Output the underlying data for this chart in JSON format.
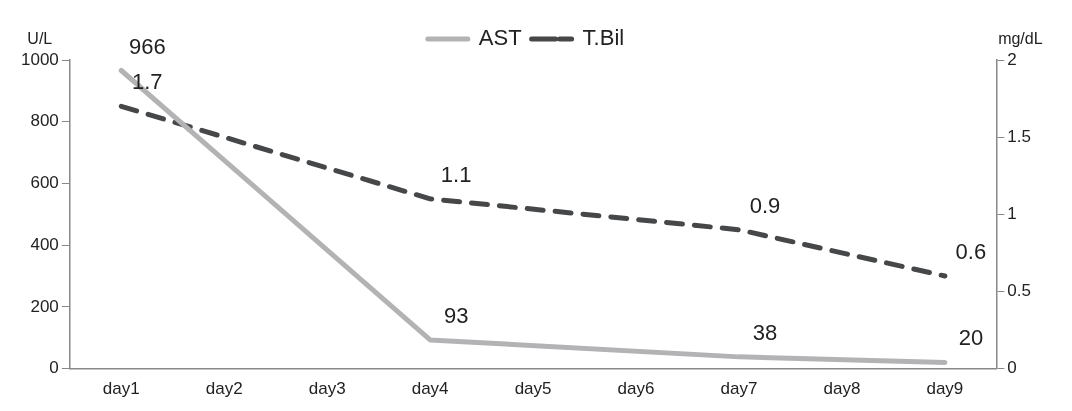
{
  "chart_data": {
    "type": "line",
    "ylabel": "U/L",
    "y2label": "mg/dL",
    "categories": [
      "day1",
      "day2",
      "day3",
      "day4",
      "day5",
      "day6",
      "day7",
      "day8",
      "day9"
    ],
    "series": [
      {
        "name": "AST",
        "color": "#b3b3b6",
        "line_style": "solid",
        "values": [
          966,
          null,
          null,
          93,
          null,
          null,
          38,
          null,
          20
        ]
      },
      {
        "name": "T.Bil",
        "color": "#454749",
        "line_style": "dashed",
        "axis": "y2",
        "values": [
          1.7,
          null,
          null,
          1.1,
          null,
          null,
          0.9,
          null,
          0.6
        ]
      }
    ],
    "ylim": [
      0,
      1000
    ],
    "yticks": [
      0,
      200,
      400,
      600,
      800,
      1000
    ],
    "y2lim": [
      0,
      2
    ],
    "y2ticks": [
      0,
      0.5,
      1,
      1.5,
      2
    ],
    "marker": "none",
    "grid": false,
    "legend": "top",
    "data_labels": true
  }
}
